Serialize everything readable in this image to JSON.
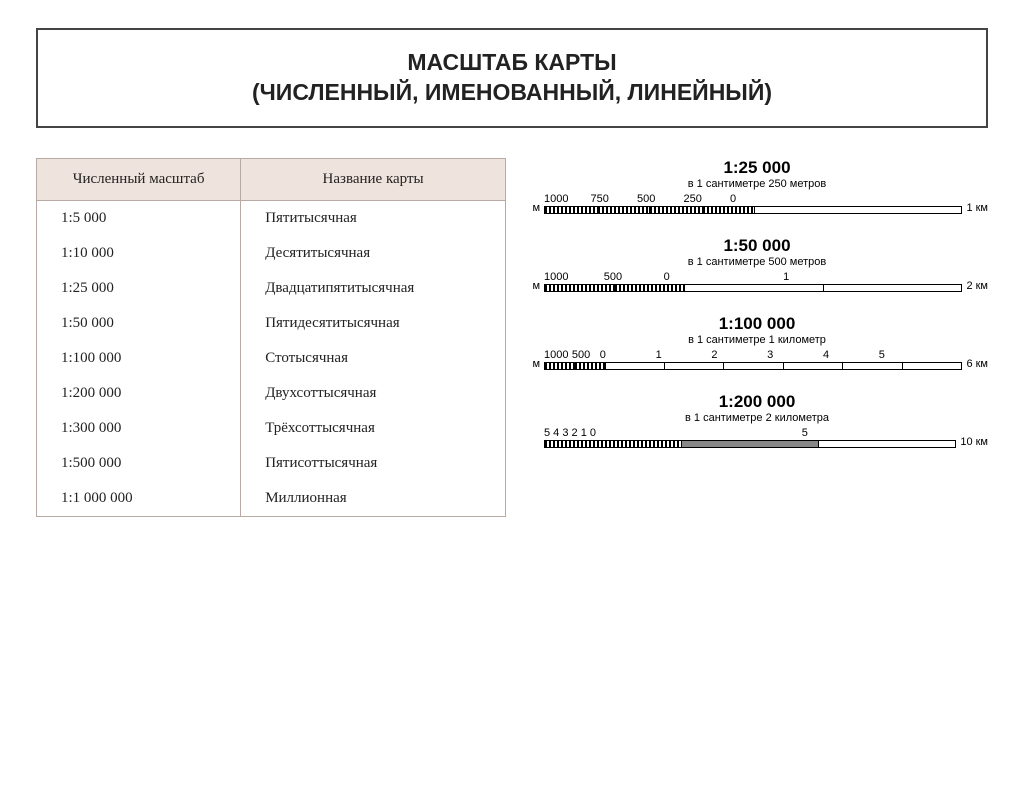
{
  "title_line1": "МАСШТАБ КАРТЫ",
  "title_line2": "(ЧИСЛЕННЫЙ, ИМЕНОВАННЫЙ, ЛИНЕЙНЫЙ)",
  "table": {
    "header_col1": "Численный масштаб",
    "header_col2": "Название карты",
    "rows": [
      {
        "scale": "1:5 000",
        "name": "Пятитысячная"
      },
      {
        "scale": "1:10 000",
        "name": "Десятитысячная"
      },
      {
        "scale": "1:25 000",
        "name": "Двадцатипятитысячная"
      },
      {
        "scale": "1:50 000",
        "name": "Пятидесятитысячная"
      },
      {
        "scale": "1:100 000",
        "name": "Стотысячная"
      },
      {
        "scale": "1:200 000",
        "name": "Двухсоттысячная"
      },
      {
        "scale": "1:300 000",
        "name": "Трёхсоттысячная"
      },
      {
        "scale": "1:500 000",
        "name": "Пятисоттысячная"
      },
      {
        "scale": "1:1 000 000",
        "name": "Миллионная"
      }
    ],
    "header_bg": "#efe3de",
    "border_color": "#b8a9a2",
    "font_size": 15
  },
  "scales": [
    {
      "title": "1:25 000",
      "sub": "в 1 сантиметре 250 метров",
      "left_unit": "м",
      "right_unit": "1 км",
      "tick_labels": [
        "1000",
        "750",
        "500",
        "250",
        "0",
        ""
      ],
      "segments": [
        "dense",
        "dense",
        "dense",
        "dense",
        "seg"
      ],
      "seg_flex": [
        1,
        1,
        1,
        1,
        4
      ]
    },
    {
      "title": "1:50 000",
      "sub": "в 1 сантиметре 500 метров",
      "left_unit": "м",
      "right_unit": "2 км",
      "tick_labels": [
        "1000",
        "500",
        "0",
        "1",
        ""
      ],
      "segments": [
        "dense",
        "dense",
        "seg",
        "seg"
      ],
      "seg_flex": [
        1,
        1,
        2,
        2
      ]
    },
    {
      "title": "1:100 000",
      "sub": "в 1 сантиметре 1 километр",
      "left_unit": "м",
      "right_unit": "6 км",
      "tick_labels": [
        "1000",
        "500",
        "0",
        "1",
        "2",
        "3",
        "4",
        "5",
        ""
      ],
      "segments": [
        "dense",
        "dense",
        "seg",
        "seg",
        "seg",
        "seg",
        "seg",
        "seg"
      ],
      "seg_flex": [
        1,
        1,
        2,
        2,
        2,
        2,
        2,
        2
      ]
    },
    {
      "title": "1:200 000",
      "sub": "в 1 сантиметре 2 километра",
      "left_unit": "",
      "right_unit": "10 км",
      "tick_labels": [
        "5 4 3 2 1 0",
        "",
        "5",
        ""
      ],
      "segments": [
        "dense",
        "seg gray",
        "seg"
      ],
      "seg_flex": [
        5,
        5,
        5
      ]
    }
  ],
  "colors": {
    "background": "#ffffff",
    "text": "#222222",
    "bar_border": "#000000",
    "dense_fill": "repeating-linear-gradient(90deg,#000 0 2px,#fff 2px 4px)"
  }
}
